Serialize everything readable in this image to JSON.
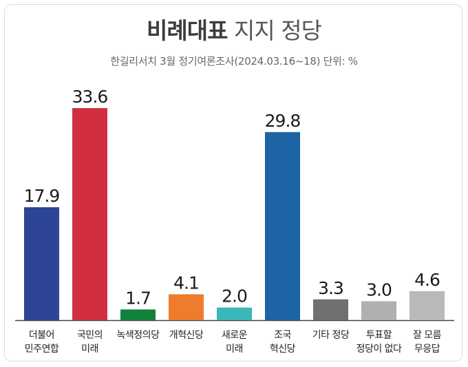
{
  "header": {
    "title_bold": "비례대표",
    "title_light": "지지 정당",
    "subtitle": "한길리서치 3월 정기여론조사(2024.03.16~18) 단위: %"
  },
  "chart_data": {
    "type": "bar",
    "title": "비례대표 지지 정당",
    "subtitle": "한길리서치 3월 정기여론조사(2024.03.16~18) 단위: %",
    "categories": [
      "더불어\n민주연합",
      "국민의\n미래",
      "녹색정의당",
      "개혁신당",
      "새로운\n미래",
      "조국\n혁신당",
      "기타 정당",
      "투표할\n정당이 없다",
      "잘 모름\n무응답"
    ],
    "values": [
      17.9,
      33.6,
      1.7,
      4.1,
      2.0,
      29.8,
      3.3,
      3.0,
      4.6
    ],
    "value_labels": [
      "17.9",
      "33.6",
      "1.7",
      "4.1",
      "2.0",
      "29.8",
      "3.3",
      "3.0",
      "4.6"
    ],
    "colors": [
      "#2e4596",
      "#d12f40",
      "#11823b",
      "#ef7b2c",
      "#3ab7b9",
      "#1c64a4",
      "#707070",
      "#b0b0b0",
      "#b9b9b9"
    ],
    "ylim": [
      0,
      33.6
    ],
    "xlabel": "",
    "ylabel": "",
    "grid": false,
    "legend": "none"
  }
}
